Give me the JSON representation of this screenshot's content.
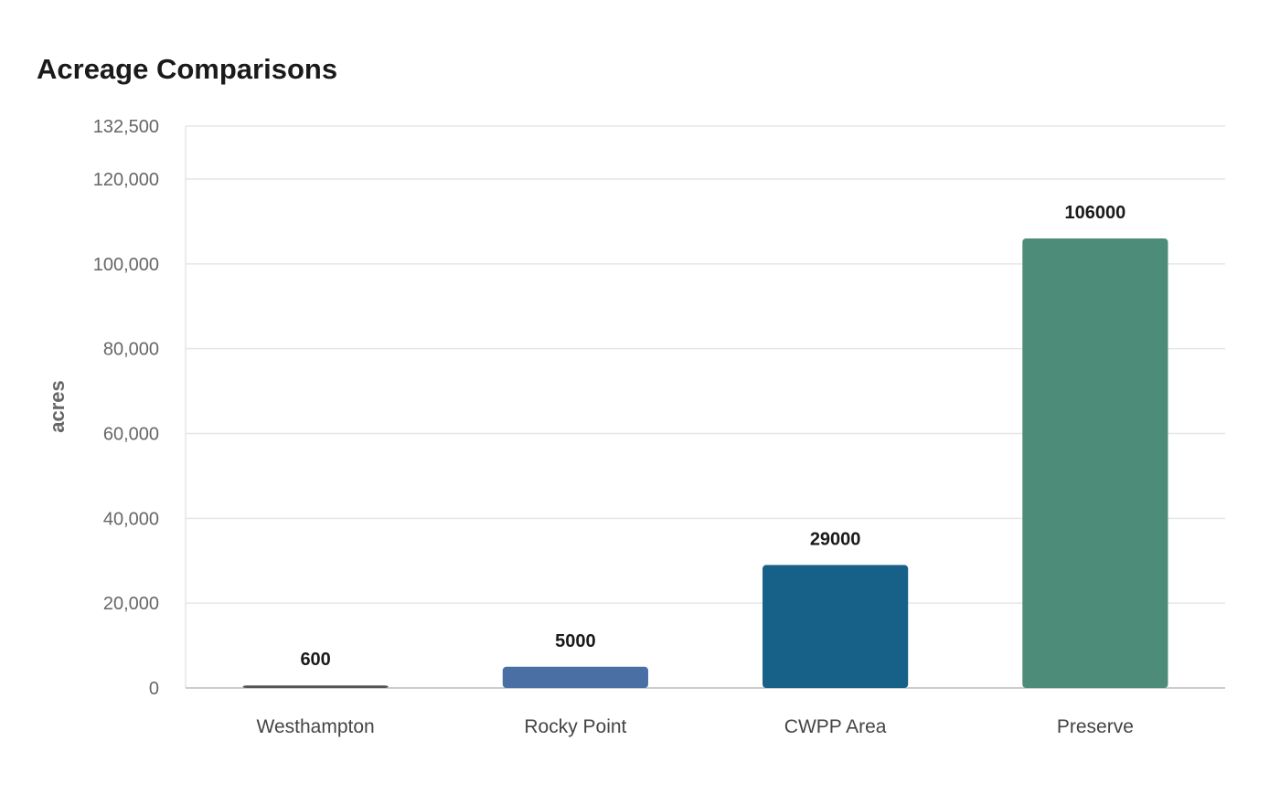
{
  "chart_data": {
    "type": "bar",
    "title": "Acreage Comparisons",
    "xlabel": "",
    "ylabel": "acres",
    "categories": [
      "Westhampton",
      "Rocky Point",
      "CWPP Area",
      "Preserve"
    ],
    "values": [
      600,
      5000,
      29000,
      106000
    ],
    "value_labels": [
      "600",
      "5000",
      "29000",
      "106000"
    ],
    "colors": [
      "#555555",
      "#4a6fa5",
      "#176087",
      "#4e8c7a"
    ],
    "ylim": [
      0,
      132500
    ],
    "yticks": [
      0,
      20000,
      40000,
      60000,
      80000,
      100000,
      120000,
      132500
    ],
    "ytick_labels": [
      "0",
      "20,000",
      "40,000",
      "60,000",
      "80,000",
      "100,000",
      "120,000",
      "132,500"
    ],
    "grid": true,
    "legend": false
  }
}
